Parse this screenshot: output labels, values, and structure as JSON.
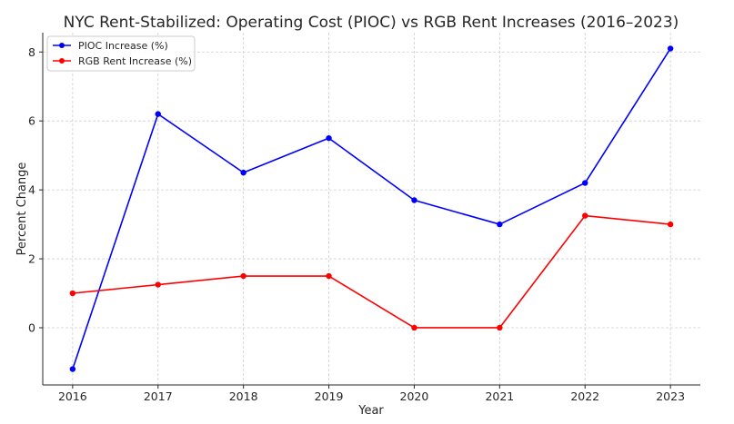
{
  "chart_data": {
    "type": "line",
    "title": "NYC Rent-Stabilized: Operating Cost (PIOC) vs RGB Rent Increases (2016–2023)",
    "xlabel": "Year",
    "ylabel": "Percent Change",
    "x": [
      2016,
      2017,
      2018,
      2019,
      2020,
      2021,
      2022,
      2023
    ],
    "x_tick_labels": [
      "2016",
      "2017",
      "2018",
      "2019",
      "2020",
      "2021",
      "2022",
      "2023"
    ],
    "y_ticks": [
      0,
      2,
      4,
      6,
      8
    ],
    "y_tick_labels": [
      "0",
      "2",
      "4",
      "6",
      "8"
    ],
    "xlim": [
      2015.65,
      2023.35
    ],
    "ylim": [
      -1.66,
      8.56
    ],
    "grid": true,
    "legend_position": "top-left",
    "series": [
      {
        "name": "PIOC Increase (%)",
        "color": "#0000ff",
        "marker": "circle",
        "values": [
          -1.2,
          6.2,
          4.5,
          5.5,
          3.7,
          3.0,
          4.2,
          8.1
        ]
      },
      {
        "name": "RGB Rent Increase (%)",
        "color": "#ff0000",
        "marker": "circle",
        "values": [
          1.0,
          1.25,
          1.5,
          1.5,
          0.0,
          0.0,
          3.25,
          3.0
        ]
      }
    ]
  }
}
